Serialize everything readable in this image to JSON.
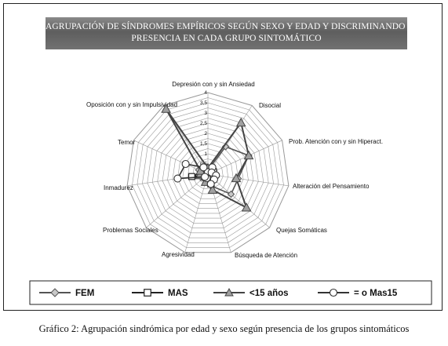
{
  "title_line1": "AGRUPACIÓN DE SÍNDROMES EMPÍRICOS SEGÚN SEXO Y EDAD Y DISCRIMINANDO LA",
  "title_line2": "PRESENCIA EN CADA GRUPO SINTOMÁTICO",
  "caption": "Gráfico 2: Agrupación sindrómica por edad y sexo según presencia de los grupos sintomáticos",
  "colors": {
    "fem": "#555555",
    "mas": "#222222",
    "menor15": "#444444",
    "mas15": "#333333",
    "grid": "#999999"
  },
  "chart_data": {
    "type": "radar",
    "axes": [
      "Depresión con y   sin Ansiedad",
      "Disocial",
      "Prob. Atención con y  sin Hiperact.",
      "Alteración del Pensamiento",
      "Quejas Somáticas",
      "Búsqueda de Atención",
      "Agresividad",
      "Problemas Sociales",
      "Inmadurez",
      "Temor",
      "Oposición con y  sin Impulsividad"
    ],
    "ticks": [
      "0",
      "0,5",
      "1",
      "1,5",
      "2",
      "2,5",
      "3",
      "3,5",
      "4"
    ],
    "rmax": 4,
    "series": [
      {
        "name": "FEM",
        "marker": "diamond",
        "values": [
          0.2,
          1.6,
          2.2,
          1.5,
          1.5,
          0.6,
          0.2,
          0.3,
          0.2,
          0.5,
          0.3
        ]
      },
      {
        "name": "MAS",
        "marker": "square",
        "values": [
          0.1,
          0.2,
          0.3,
          0.1,
          0.3,
          0.5,
          0.1,
          0.1,
          0.8,
          0.3,
          0.1
        ]
      },
      {
        "name": "<15 años",
        "marker": "triangle",
        "values": [
          0.3,
          3.0,
          2.2,
          1.4,
          2.5,
          0.8,
          0.4,
          0.2,
          0.4,
          0.4,
          3.8
        ]
      },
      {
        "name": "= o Mas15",
        "marker": "circle",
        "values": [
          0.1,
          0.4,
          0.2,
          0.4,
          0.4,
          0.5,
          0.2,
          0.2,
          1.5,
          1.2,
          0.4
        ]
      }
    ],
    "legend_position": "bottom"
  }
}
